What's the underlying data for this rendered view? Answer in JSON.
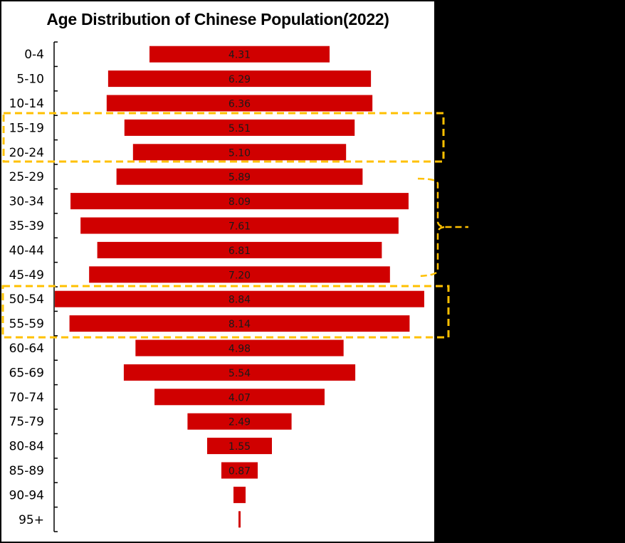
{
  "chart_data": {
    "type": "bar",
    "orientation": "horizontal-centered",
    "title": "Age Distribution of Chinese Population(2022)",
    "xlabel": "",
    "ylabel": "",
    "categories": [
      "0-4",
      "5-10",
      "10-14",
      "15-19",
      "20-24",
      "25-29",
      "30-34",
      "35-39",
      "40-44",
      "45-49",
      "50-54",
      "55-59",
      "60-64",
      "65-69",
      "70-74",
      "75-79",
      "80-84",
      "85-89",
      "90-94",
      "95+"
    ],
    "values": [
      4.31,
      6.29,
      6.36,
      5.51,
      5.1,
      5.89,
      8.09,
      7.61,
      6.81,
      7.2,
      8.84,
      8.14,
      4.98,
      5.54,
      4.07,
      2.49,
      1.55,
      0.87,
      0.29,
      0.05
    ],
    "data_labels": [
      "4.31",
      "6.29",
      "6.36",
      "5.51",
      "5.10",
      "5.89",
      "8.09",
      "7.61",
      "6.81",
      "7.20",
      "8.84",
      "8.14",
      "4.98",
      "5.54",
      "4.07",
      "2.49",
      "1.55",
      "0.87",
      "",
      ""
    ],
    "units": "%",
    "grid": false,
    "legend": "none",
    "bar_color": "#D00000",
    "annotations": [
      {
        "type": "dashed-box",
        "covers": [
          "15-19",
          "20-24"
        ],
        "color": "#FFC000"
      },
      {
        "type": "curly-brace",
        "covers": [
          "25-29",
          "30-34",
          "35-39",
          "40-44",
          "45-49"
        ],
        "color": "#FFC000"
      },
      {
        "type": "dashed-box",
        "covers": [
          "50-54",
          "55-59"
        ],
        "color": "#FFC000"
      }
    ]
  },
  "colors": {
    "bar": "#D00000",
    "highlight": "#FFC000",
    "background": "#FFFFFF",
    "outer": "#000000"
  }
}
